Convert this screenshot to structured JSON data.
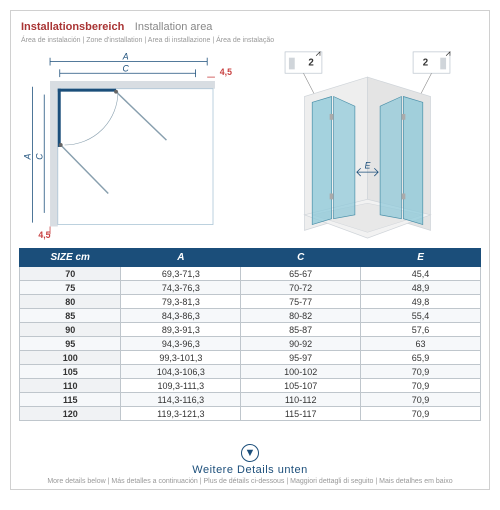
{
  "title": {
    "main": "Installationsbereich",
    "alt": "Installation area",
    "langs": "Área de instalación | Zone d'installation | Area di installazione | Área de instalação"
  },
  "diagram": {
    "labels": {
      "A": "A",
      "C": "C",
      "E": "E"
    },
    "dim_value": "4,5",
    "dim_color": "#c84040",
    "inset_label": "2",
    "line_color": "#1b4e7a",
    "panel_color": "#8bc8d8",
    "tray_color": "#e6e6e6",
    "wall_color": "#eeeeee",
    "bg_color": "#ffffff",
    "hinge_color": "#aaaaaa"
  },
  "table": {
    "header": [
      "SIZE cm",
      "A",
      "C",
      "E"
    ],
    "rows": [
      [
        "70",
        "69,3-71,3",
        "65-67",
        "45,4"
      ],
      [
        "75",
        "74,3-76,3",
        "70-72",
        "48,9"
      ],
      [
        "80",
        "79,3-81,3",
        "75-77",
        "49,8"
      ],
      [
        "85",
        "84,3-86,3",
        "80-82",
        "55,4"
      ],
      [
        "90",
        "89,3-91,3",
        "85-87",
        "57,6"
      ],
      [
        "95",
        "94,3-96,3",
        "90-92",
        "63"
      ],
      [
        "100",
        "99,3-101,3",
        "95-97",
        "65,9"
      ],
      [
        "105",
        "104,3-106,3",
        "100-102",
        "70,9"
      ],
      [
        "110",
        "109,3-111,3",
        "105-107",
        "70,9"
      ],
      [
        "115",
        "114,3-116,3",
        "110-112",
        "70,9"
      ],
      [
        "120",
        "119,3-121,3",
        "115-117",
        "70,9"
      ]
    ],
    "header_bg": "#1b4e7a",
    "border_color": "#bfc6cc"
  },
  "footer": {
    "main": "Weitere Details unten",
    "langs": "More details below | Más detalles a continuación | Plus de détails ci-dessous | Maggiori dettagli di seguito | Mais detalhes em baixo"
  }
}
